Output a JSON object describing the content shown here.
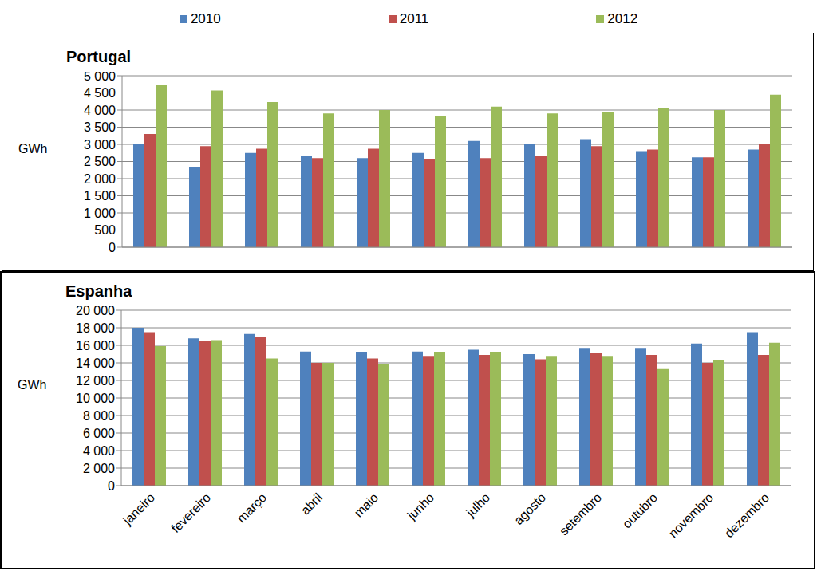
{
  "chart_data": [
    {
      "type": "bar",
      "title": "Portugal",
      "y_label": "GWh",
      "categories": [
        null,
        null,
        null,
        null,
        null,
        null,
        null,
        null,
        null,
        null,
        null,
        null
      ],
      "series": [
        {
          "name": "2010",
          "color": "#4f81bd",
          "values": [
            3000,
            2350,
            2750,
            2650,
            2600,
            2750,
            3100,
            3000,
            3150,
            2800,
            2620,
            2850
          ]
        },
        {
          "name": "2011",
          "color": "#c0504d",
          "values": [
            3300,
            2950,
            2870,
            2600,
            2870,
            2580,
            2600,
            2650,
            2950,
            2850,
            2620,
            3000
          ]
        },
        {
          "name": "2012",
          "color": "#9bbb59",
          "values": [
            4720,
            4570,
            4230,
            3900,
            4000,
            3820,
            4100,
            3900,
            3950,
            4070,
            4000,
            4450
          ]
        }
      ],
      "ylim": [
        0,
        5000
      ],
      "yticks": [
        0,
        500,
        {
          "value": 1000,
          "label": "1 000"
        },
        {
          "value": 1500,
          "label": "1 500"
        },
        {
          "value": 2000,
          "label": "2 000"
        },
        {
          "value": 2500,
          "label": "2 500"
        },
        {
          "value": 3000,
          "label": "3 000"
        },
        {
          "value": 3500,
          "label": "3 500"
        },
        {
          "value": 4000,
          "label": "4 000"
        },
        {
          "value": 4500,
          "label": "4 500"
        },
        {
          "value": 5000,
          "label": "5 000"
        }
      ],
      "grid": true,
      "legend": "top",
      "tick_labels": "y"
    },
    {
      "type": "bar",
      "title": "Espanha",
      "y_label": "GWh",
      "categories": [
        "janeiro",
        "fevereiro",
        "março",
        "abril",
        "maio",
        "junho",
        "julho",
        "agosto",
        "setembro",
        "outubro",
        "novembro",
        "dezembro"
      ],
      "series": [
        {
          "name": "2010",
          "color": "#4f81bd",
          "values": [
            18000,
            16800,
            17300,
            15300,
            15200,
            15300,
            15500,
            15000,
            15700,
            15700,
            16200,
            17500
          ]
        },
        {
          "name": "2011",
          "color": "#c0504d",
          "values": [
            17500,
            16500,
            16900,
            14000,
            14500,
            14700,
            14900,
            14400,
            15100,
            14900,
            14000,
            14900
          ]
        },
        {
          "name": "2012",
          "color": "#9bbb59",
          "values": [
            15900,
            16600,
            14500,
            14000,
            13900,
            15200,
            15200,
            14700,
            14700,
            13300,
            14300,
            16300
          ]
        }
      ],
      "ylim": [
        0,
        20000
      ],
      "yticks": [
        0,
        {
          "value": 2000,
          "label": "2 000"
        },
        {
          "value": 4000,
          "label": "4 000"
        },
        {
          "value": 6000,
          "label": "6 000"
        },
        {
          "value": 8000,
          "label": "8 000"
        },
        {
          "value": 10000,
          "label": "10 000"
        },
        {
          "value": 12000,
          "label": "12 000"
        },
        {
          "value": 14000,
          "label": "14 000"
        },
        {
          "value": 16000,
          "label": "16 000"
        },
        {
          "value": 18000,
          "label": "18 000"
        },
        {
          "value": 20000,
          "label": "20 000"
        }
      ],
      "grid": true
    }
  ]
}
